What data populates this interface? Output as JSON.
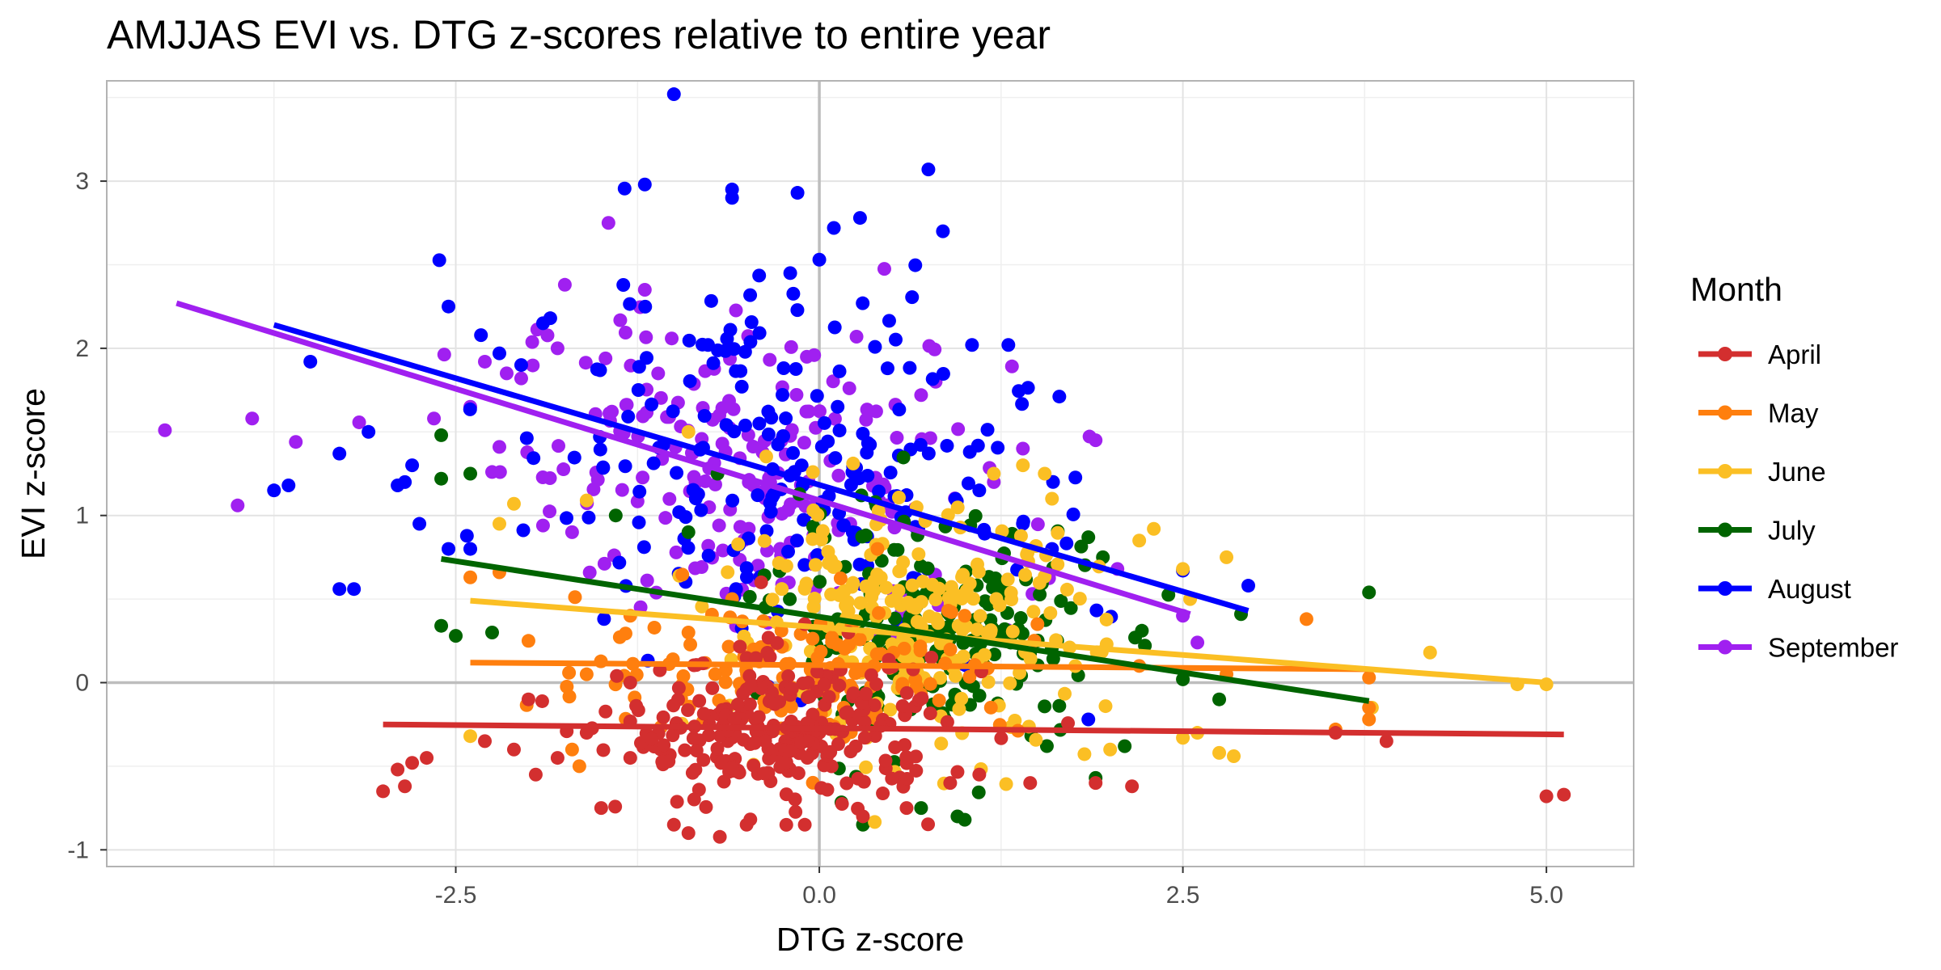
{
  "chart_data": {
    "type": "scatter",
    "title": "AMJJAS EVI vs. DTG z-scores relative to entire year",
    "xlabel": "DTG z-score",
    "ylabel": "EVI z-score",
    "xlim": [
      -4.9,
      5.6
    ],
    "ylim": [
      -1.1,
      3.6
    ],
    "x_ticks": [
      -2.5,
      0,
      2.5,
      5
    ],
    "x_tick_labels": [
      "-2.5",
      "0.0",
      "2.5",
      "5.0"
    ],
    "y_ticks": [
      -1,
      0,
      1,
      2,
      3
    ],
    "y_tick_labels": [
      "-1",
      "0",
      "1",
      "2",
      "3"
    ],
    "grid": true,
    "reference_lines": {
      "x": 0,
      "y": 0
    },
    "legend": {
      "title": "Month",
      "placement": "right"
    },
    "series": [
      {
        "name": "April",
        "color": "#d32f2f",
        "center": [
          -0.25,
          -0.35
        ],
        "spread": [
          0.55,
          0.22
        ],
        "count": 260,
        "points": [
          [
            -3.0,
            -0.65
          ],
          [
            -2.9,
            -0.52
          ],
          [
            -2.8,
            -0.48
          ],
          [
            -2.85,
            -0.62
          ],
          [
            -2.7,
            -0.45
          ],
          [
            -2.3,
            -0.35
          ],
          [
            -2.1,
            -0.4
          ],
          [
            -1.95,
            -0.55
          ],
          [
            -1.8,
            -0.45
          ],
          [
            -1.6,
            -0.3
          ],
          [
            -1.5,
            -0.75
          ],
          [
            -1.3,
            -0.45
          ],
          [
            -1.0,
            -0.85
          ],
          [
            -0.9,
            -0.9
          ],
          [
            -0.5,
            -0.85
          ],
          [
            -0.1,
            -0.85
          ],
          [
            0.3,
            -0.8
          ],
          [
            0.6,
            -0.75
          ],
          [
            0.9,
            -0.6
          ],
          [
            1.1,
            -0.55
          ],
          [
            1.45,
            -0.6
          ],
          [
            1.9,
            -0.6
          ],
          [
            2.15,
            -0.62
          ],
          [
            3.55,
            -0.3
          ],
          [
            3.9,
            -0.35
          ],
          [
            5.0,
            -0.68
          ],
          [
            5.12,
            -0.67
          ],
          [
            -0.4,
            0.6
          ],
          [
            -0.1,
            0.35
          ],
          [
            0.2,
            0.3
          ],
          [
            -1.3,
            0.0
          ],
          [
            -2.0,
            -0.1
          ]
        ],
        "trend": {
          "x": [
            -3.0,
            5.12
          ],
          "y": [
            -0.25,
            -0.31
          ]
        }
      },
      {
        "name": "May",
        "color": "#ff7f0e",
        "center": [
          -0.1,
          0.05
        ],
        "spread": [
          0.75,
          0.2
        ],
        "count": 140,
        "points": [
          [
            -2.4,
            0.63
          ],
          [
            -2.2,
            0.66
          ],
          [
            -2.0,
            0.25
          ],
          [
            -1.7,
            -0.4
          ],
          [
            -1.65,
            -0.5
          ],
          [
            -1.6,
            0.05
          ],
          [
            -1.3,
            0.4
          ],
          [
            -0.9,
            0.3
          ],
          [
            -0.6,
            0.5
          ],
          [
            0.4,
            0.8
          ],
          [
            1.0,
            0.4
          ],
          [
            1.5,
            0.35
          ],
          [
            2.2,
            0.1
          ],
          [
            3.35,
            0.38
          ],
          [
            3.55,
            -0.28
          ],
          [
            3.78,
            -0.15
          ],
          [
            3.78,
            -0.22
          ],
          [
            3.78,
            0.03
          ],
          [
            2.8,
            0.05
          ]
        ],
        "trend": {
          "x": [
            -2.4,
            3.78
          ],
          "y": [
            0.12,
            0.08
          ]
        }
      },
      {
        "name": "June",
        "color": "#fbbf24",
        "center": [
          0.6,
          0.35
        ],
        "spread": [
          0.65,
          0.35
        ],
        "count": 230,
        "points": [
          [
            -2.4,
            -0.32
          ],
          [
            -2.2,
            0.95
          ],
          [
            -2.1,
            1.07
          ],
          [
            -1.6,
            1.09
          ],
          [
            -0.9,
            1.5
          ],
          [
            1.2,
            1.25
          ],
          [
            1.4,
            1.3
          ],
          [
            1.55,
            1.25
          ],
          [
            1.6,
            1.1
          ],
          [
            2.2,
            0.85
          ],
          [
            2.3,
            0.92
          ],
          [
            2.5,
            0.68
          ],
          [
            2.8,
            0.75
          ],
          [
            2.0,
            -0.4
          ],
          [
            2.5,
            -0.33
          ],
          [
            2.6,
            -0.3
          ],
          [
            2.75,
            -0.42
          ],
          [
            2.85,
            -0.44
          ],
          [
            3.8,
            -0.15
          ],
          [
            4.2,
            0.18
          ],
          [
            4.8,
            -0.01
          ],
          [
            5.0,
            -0.01
          ],
          [
            2.55,
            0.5
          ]
        ],
        "trend": {
          "x": [
            -2.4,
            5.0
          ],
          "y": [
            0.49,
            0.0
          ]
        }
      },
      {
        "name": "July",
        "color": "#006400",
        "center": [
          0.8,
          0.3
        ],
        "spread": [
          0.55,
          0.35
        ],
        "count": 200,
        "points": [
          [
            -2.6,
            1.48
          ],
          [
            -2.6,
            1.22
          ],
          [
            -2.4,
            1.25
          ],
          [
            -2.6,
            0.34
          ],
          [
            -2.5,
            0.28
          ],
          [
            -2.25,
            0.3
          ],
          [
            -1.4,
            1.0
          ],
          [
            -0.9,
            0.9
          ],
          [
            -0.7,
            1.25
          ],
          [
            0.3,
            -0.85
          ],
          [
            0.7,
            -0.75
          ],
          [
            0.95,
            -0.8
          ],
          [
            1.0,
            -0.82
          ],
          [
            1.9,
            -0.57
          ],
          [
            1.85,
            0.87
          ],
          [
            1.95,
            0.75
          ],
          [
            2.1,
            -0.38
          ],
          [
            2.5,
            0.02
          ],
          [
            2.75,
            -0.1
          ],
          [
            2.9,
            0.41
          ],
          [
            3.78,
            0.54
          ]
        ],
        "trend": {
          "x": [
            -2.6,
            3.78
          ],
          "y": [
            0.74,
            -0.11
          ]
        }
      },
      {
        "name": "August",
        "color": "#0000ff",
        "center": [
          -0.3,
          1.4
        ],
        "spread": [
          0.85,
          0.55
        ],
        "count": 210,
        "points": [
          [
            -1.0,
            3.52
          ],
          [
            -1.2,
            2.98
          ],
          [
            -0.6,
            2.95
          ],
          [
            -0.6,
            2.9
          ],
          [
            -0.15,
            2.93
          ],
          [
            0.75,
            3.07
          ],
          [
            0.85,
            2.7
          ],
          [
            -2.55,
            2.25
          ],
          [
            -3.5,
            1.92
          ],
          [
            -3.75,
            1.15
          ],
          [
            -3.65,
            1.18
          ],
          [
            -3.3,
            1.37
          ],
          [
            -3.1,
            1.5
          ],
          [
            -2.85,
            1.2
          ],
          [
            -2.8,
            1.3
          ],
          [
            -2.9,
            1.18
          ],
          [
            -2.75,
            0.95
          ],
          [
            -2.55,
            0.8
          ],
          [
            -2.4,
            0.8
          ],
          [
            -3.3,
            0.56
          ],
          [
            -3.2,
            0.56
          ],
          [
            -2.2,
            1.97
          ],
          [
            -2.05,
            1.9
          ],
          [
            -1.9,
            2.15
          ],
          [
            -1.85,
            2.18
          ],
          [
            1.05,
            2.02
          ],
          [
            1.3,
            2.02
          ],
          [
            2.5,
            0.67
          ],
          [
            2.95,
            0.58
          ],
          [
            1.1,
            1.15
          ],
          [
            1.4,
            0.95
          ],
          [
            1.6,
            0.8
          ],
          [
            1.85,
            -0.22
          ],
          [
            -0.2,
            2.45
          ],
          [
            0.1,
            2.72
          ],
          [
            0.28,
            2.78
          ],
          [
            -0.0,
            2.53
          ]
        ],
        "trend": {
          "x": [
            -3.75,
            2.95
          ],
          "y": [
            2.14,
            0.43
          ]
        }
      },
      {
        "name": "September",
        "color": "#a020f0",
        "center": [
          -0.4,
          1.3
        ],
        "spread": [
          0.85,
          0.45
        ],
        "count": 200,
        "points": [
          [
            -4.5,
            1.51
          ],
          [
            -3.9,
            1.58
          ],
          [
            -4.0,
            1.06
          ],
          [
            -3.6,
            1.44
          ],
          [
            -2.65,
            1.58
          ],
          [
            -2.4,
            1.65
          ],
          [
            -2.3,
            1.92
          ],
          [
            -2.25,
            1.26
          ],
          [
            -2.15,
            1.85
          ],
          [
            -2.05,
            1.82
          ],
          [
            -1.75,
            2.38
          ],
          [
            -1.8,
            2.0
          ],
          [
            -1.45,
            2.75
          ],
          [
            -1.2,
            2.35
          ],
          [
            -1.9,
            0.94
          ],
          [
            -1.7,
            0.9
          ],
          [
            -2.2,
            1.41
          ],
          [
            1.9,
            1.45
          ],
          [
            2.05,
            0.68
          ],
          [
            2.5,
            0.4
          ],
          [
            2.6,
            0.24
          ],
          [
            1.4,
            1.4
          ],
          [
            1.2,
            1.2
          ],
          [
            0.8,
            1.8
          ],
          [
            0.7,
            1.72
          ]
        ],
        "trend": {
          "x": [
            -4.42,
            2.55
          ],
          "y": [
            2.27,
            0.41
          ]
        }
      }
    ]
  }
}
